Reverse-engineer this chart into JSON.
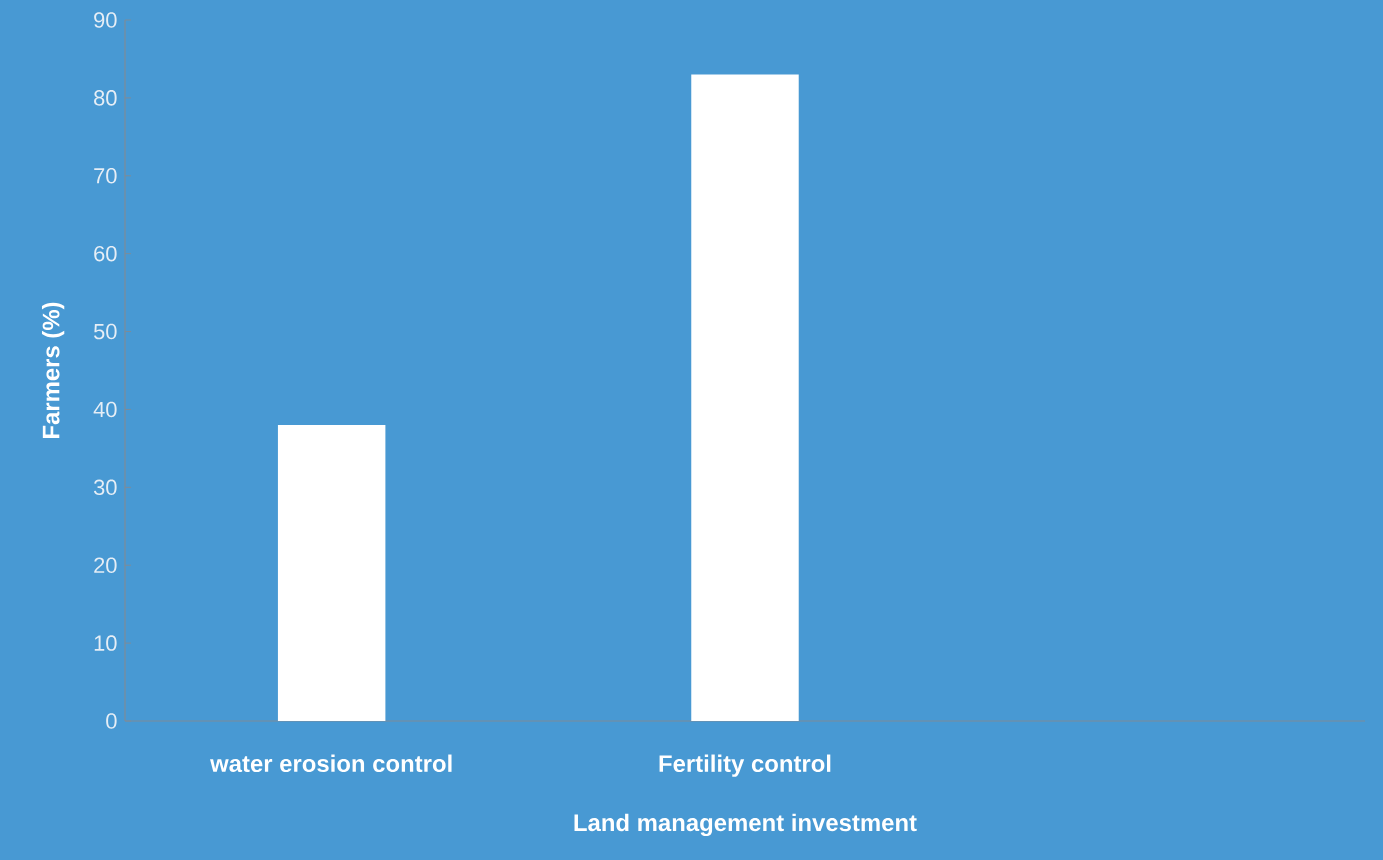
{
  "chart_data": {
    "type": "bar",
    "xlabel": "Land management investment",
    "ylabel": "Farmers (%)",
    "categories": [
      "water erosion control",
      "Fertility control",
      null
    ],
    "values": [
      38,
      83,
      null
    ],
    "color": "#ffffff",
    "ylim": [
      0,
      90
    ],
    "yticks": [
      0,
      10,
      20,
      30,
      40,
      50,
      60,
      70,
      80,
      90
    ],
    "grid": false
  }
}
